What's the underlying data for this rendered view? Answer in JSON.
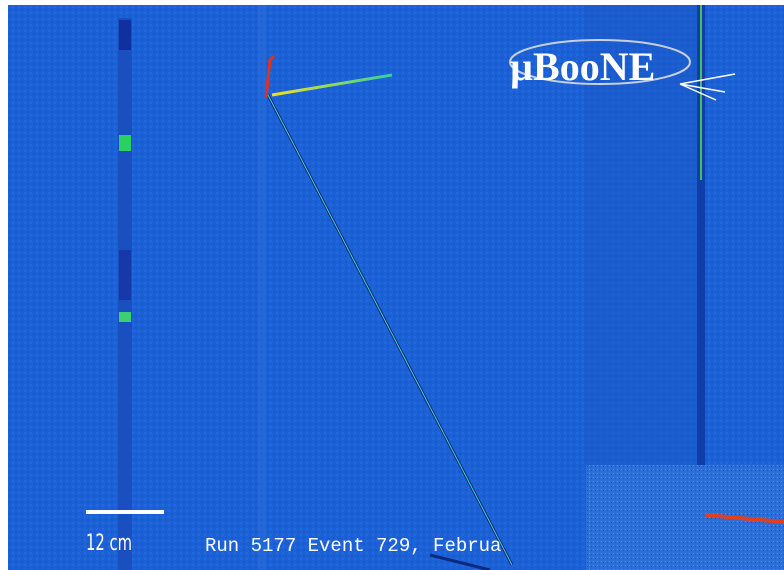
{
  "logo": "µBooNE",
  "scale_bar": {
    "label": "12 cm"
  },
  "caption": "Run 5177 Event 729, Februa"
}
